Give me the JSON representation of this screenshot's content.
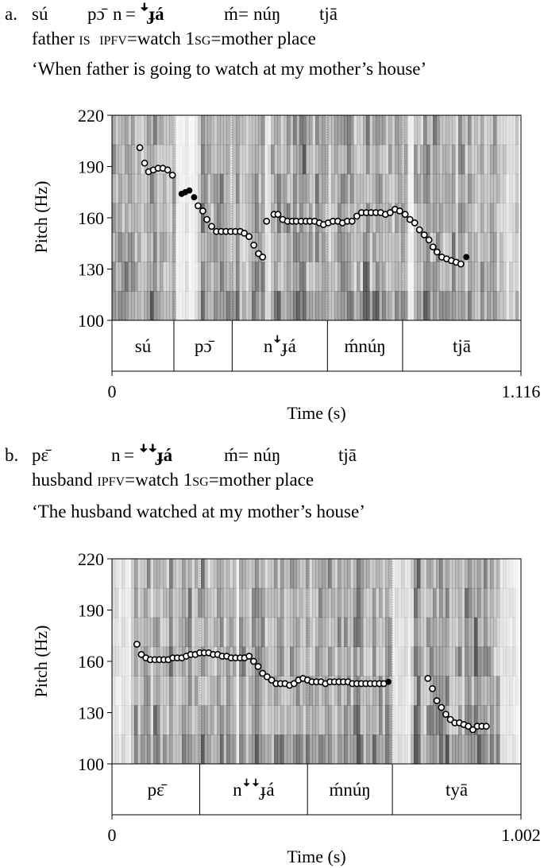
{
  "examples": [
    {
      "label": "a.",
      "gloss_words": [
        "sú",
        "pɔ̄",
        "n",
        "=",
        "ꜜɟá",
        "ḿ",
        "=",
        "núŋ",
        "tjā"
      ],
      "gloss_line2": {
        "w1": "father",
        "is": "is",
        "ipfv": "ipfv",
        "watch": "=watch 1",
        "sg": "sg",
        "rest": "=mother place"
      },
      "translation": "‘When father is going to watch at my mother’s house’",
      "chart": {
        "ylabel": "Pitch (Hz)",
        "xlabel": "Time (s)",
        "x_start": "0",
        "x_end": "1.116",
        "segment_labels": [
          "sú",
          "pɔ̄",
          "nꜜɟá",
          "ḿnúŋ",
          "tjā"
        ]
      }
    },
    {
      "label": "b.",
      "gloss_words": [
        "pɛ̄",
        "n",
        "=",
        "ꜜꜜɟá",
        "ḿ",
        "=",
        "núŋ",
        "tjā"
      ],
      "gloss_line2": {
        "w1": "husband",
        "ipfv": "ipfv",
        "watch": "=watch 1",
        "sg": "sg",
        "rest": "=mother place"
      },
      "translation": "‘The husband watched at my mother’s house’",
      "chart": {
        "ylabel": "Pitch (Hz)",
        "xlabel": "Time (s)",
        "x_start": "0",
        "x_end": "1.002",
        "segment_labels": [
          "pɛ̄",
          "nꜜꜜɟá",
          "ḿnúŋ",
          "tyā"
        ]
      }
    }
  ],
  "chart_data": [
    {
      "type": "scatter",
      "title": "",
      "xlabel": "Time (s)",
      "ylabel": "Pitch (Hz)",
      "xlim": [
        0,
        1.116
      ],
      "ylim": [
        100,
        220
      ],
      "yticks": [
        100,
        130,
        160,
        190,
        220
      ],
      "segments": [
        {
          "label": "sú",
          "start": 0.0,
          "end": 0.169
        },
        {
          "label": "pɔ̄",
          "start": 0.169,
          "end": 0.328
        },
        {
          "label": "nꜜɟá",
          "start": 0.328,
          "end": 0.588
        },
        {
          "label": "ḿnúŋ",
          "start": 0.588,
          "end": 0.793
        },
        {
          "label": "tjā",
          "start": 0.793,
          "end": 1.116
        }
      ],
      "pitch": {
        "x": [
          0.076,
          0.089,
          0.1,
          0.113,
          0.126,
          0.139,
          0.152,
          0.165,
          0.19,
          0.2,
          0.211,
          0.224,
          0.235,
          0.248,
          0.259,
          0.272,
          0.285,
          0.298,
          0.311,
          0.324,
          0.337,
          0.35,
          0.361,
          0.374,
          0.387,
          0.4,
          0.411,
          0.422,
          0.442,
          0.453,
          0.466,
          0.479,
          0.492,
          0.503,
          0.516,
          0.529,
          0.54,
          0.553,
          0.566,
          0.577,
          0.59,
          0.603,
          0.616,
          0.629,
          0.642,
          0.655,
          0.668,
          0.681,
          0.694,
          0.707,
          0.72,
          0.733,
          0.746,
          0.759,
          0.772,
          0.785,
          0.8,
          0.813,
          0.826,
          0.839,
          0.852,
          0.865,
          0.876,
          0.887,
          0.9,
          0.913,
          0.926,
          0.939,
          0.952,
          0.967
        ],
        "y": [
          201,
          192,
          187,
          188,
          189,
          189,
          188,
          185,
          174,
          175,
          176,
          172,
          167,
          164,
          159,
          155,
          152,
          152,
          152,
          152,
          152,
          152,
          151,
          149,
          144,
          139,
          137,
          158,
          162,
          162,
          159,
          158,
          158,
          158,
          158,
          158,
          158,
          158,
          157,
          156,
          157,
          158,
          158,
          157,
          158,
          158,
          161,
          163,
          163,
          163,
          163,
          163,
          162,
          163,
          165,
          164,
          162,
          159,
          157,
          153,
          150,
          147,
          143,
          140,
          137,
          136,
          135,
          134,
          133,
          137
        ],
        "hollow": [
          true,
          true,
          true,
          true,
          true,
          true,
          true,
          true,
          false,
          false,
          false,
          false,
          true,
          true,
          true,
          true,
          true,
          true,
          true,
          true,
          true,
          true,
          true,
          true,
          true,
          true,
          true,
          true,
          true,
          true,
          true,
          true,
          true,
          true,
          true,
          true,
          true,
          true,
          true,
          true,
          true,
          true,
          true,
          true,
          true,
          true,
          true,
          true,
          true,
          true,
          true,
          true,
          true,
          true,
          true,
          true,
          true,
          true,
          true,
          true,
          true,
          true,
          true,
          true,
          true,
          true,
          true,
          true,
          true
        ]
      }
    },
    {
      "type": "scatter",
      "title": "",
      "xlabel": "Time (s)",
      "ylabel": "Pitch (Hz)",
      "xlim": [
        0,
        1.002
      ],
      "ylim": [
        100,
        220
      ],
      "yticks": [
        100,
        130,
        160,
        190,
        220
      ],
      "segments": [
        {
          "label": "pɛ̄",
          "start": 0.0,
          "end": 0.215
        },
        {
          "label": "nꜜꜜɟá",
          "start": 0.215,
          "end": 0.479
        },
        {
          "label": "ḿnúŋ",
          "start": 0.479,
          "end": 0.687
        },
        {
          "label": "tyā",
          "start": 0.687,
          "end": 1.002
        }
      ],
      "pitch": {
        "x": [
          0.061,
          0.072,
          0.083,
          0.094,
          0.105,
          0.116,
          0.127,
          0.138,
          0.149,
          0.16,
          0.171,
          0.182,
          0.193,
          0.204,
          0.215,
          0.226,
          0.237,
          0.248,
          0.259,
          0.27,
          0.281,
          0.292,
          0.303,
          0.314,
          0.325,
          0.336,
          0.347,
          0.358,
          0.369,
          0.38,
          0.391,
          0.402,
          0.413,
          0.424,
          0.435,
          0.446,
          0.457,
          0.468,
          0.479,
          0.49,
          0.501,
          0.512,
          0.523,
          0.534,
          0.545,
          0.556,
          0.567,
          0.578,
          0.589,
          0.6,
          0.611,
          0.622,
          0.633,
          0.644,
          0.655,
          0.666,
          0.677,
          0.774,
          0.785,
          0.796,
          0.807,
          0.818,
          0.829,
          0.84,
          0.851,
          0.862,
          0.873,
          0.884,
          0.895,
          0.906,
          0.917
        ],
        "y": [
          170,
          164,
          162,
          161,
          161,
          161,
          161,
          161,
          162,
          162,
          162,
          163,
          164,
          164,
          165,
          165,
          165,
          164,
          164,
          163,
          163,
          162,
          162,
          162,
          162,
          163,
          160,
          157,
          153,
          151,
          149,
          147,
          147,
          147,
          146,
          147,
          149,
          150,
          149,
          148,
          148,
          148,
          147,
          148,
          148,
          148,
          148,
          148,
          147,
          147,
          147,
          147,
          147,
          147,
          147,
          147,
          148,
          150,
          144,
          137,
          133,
          129,
          126,
          124,
          124,
          123,
          122,
          120,
          122,
          122,
          122
        ],
        "hollow": [
          true,
          true,
          true,
          true,
          true,
          true,
          true,
          true,
          true,
          true,
          true,
          true,
          true,
          true,
          true,
          true,
          true,
          true,
          true,
          true,
          true,
          true,
          true,
          true,
          true,
          true,
          true,
          true,
          true,
          true,
          true,
          true,
          true,
          true,
          true,
          true,
          true,
          true,
          true,
          true,
          true,
          true,
          true,
          true,
          true,
          true,
          true,
          true,
          true,
          true,
          true,
          true,
          true,
          true,
          true,
          true,
          false,
          true,
          true,
          true,
          true,
          true,
          true,
          true,
          true,
          true,
          true,
          true,
          true,
          true,
          true
        ]
      }
    }
  ]
}
